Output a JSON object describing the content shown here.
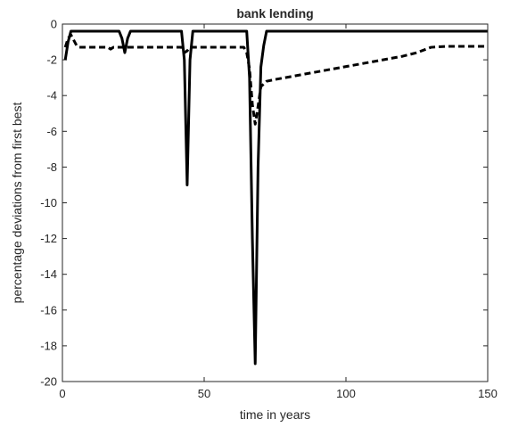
{
  "chart_data": {
    "type": "line",
    "title": "bank lending",
    "xlabel": "time in years",
    "ylabel": "percentage deviations from first best",
    "xlim": [
      0,
      150
    ],
    "ylim": [
      -20,
      0
    ],
    "xticks": [
      0,
      50,
      100,
      150
    ],
    "yticks": [
      0,
      -2,
      -4,
      -6,
      -8,
      -10,
      -12,
      -14,
      -16,
      -18,
      -20
    ],
    "grid": false,
    "legend": "none",
    "series": [
      {
        "style": "solid",
        "color": "#000000",
        "points": [
          [
            1,
            -2.0
          ],
          [
            2,
            -1.0
          ],
          [
            3,
            -0.4
          ],
          [
            20,
            -0.4
          ],
          [
            21,
            -0.8
          ],
          [
            22,
            -1.6
          ],
          [
            23,
            -0.8
          ],
          [
            24,
            -0.4
          ],
          [
            42,
            -0.4
          ],
          [
            43,
            -2.0
          ],
          [
            44,
            -9.0
          ],
          [
            45,
            -2.0
          ],
          [
            46,
            -0.4
          ],
          [
            65,
            -0.4
          ],
          [
            66,
            -3.0
          ],
          [
            67,
            -12.0
          ],
          [
            68,
            -19.0
          ],
          [
            69,
            -8.0
          ],
          [
            70,
            -2.4
          ],
          [
            71,
            -1.2
          ],
          [
            72,
            -0.4
          ],
          [
            150,
            -0.4
          ]
        ]
      },
      {
        "style": "dashed",
        "color": "#000000",
        "points": [
          [
            1,
            -1.3
          ],
          [
            2,
            -0.8
          ],
          [
            3,
            -0.6
          ],
          [
            5,
            -1.2
          ],
          [
            6,
            -1.3
          ],
          [
            16,
            -1.3
          ],
          [
            17,
            -1.4
          ],
          [
            18,
            -1.3
          ],
          [
            42,
            -1.3
          ],
          [
            43,
            -1.6
          ],
          [
            44,
            -1.5
          ],
          [
            45,
            -1.3
          ],
          [
            64,
            -1.3
          ],
          [
            65,
            -1.6
          ],
          [
            66,
            -2.5
          ],
          [
            67,
            -4.5
          ],
          [
            68,
            -5.6
          ],
          [
            69,
            -4.6
          ],
          [
            70,
            -3.5
          ],
          [
            72,
            -3.2
          ],
          [
            75,
            -3.1
          ],
          [
            120,
            -1.8
          ],
          [
            125,
            -1.6
          ],
          [
            130,
            -1.3
          ],
          [
            135,
            -1.25
          ],
          [
            150,
            -1.25
          ]
        ]
      }
    ]
  }
}
